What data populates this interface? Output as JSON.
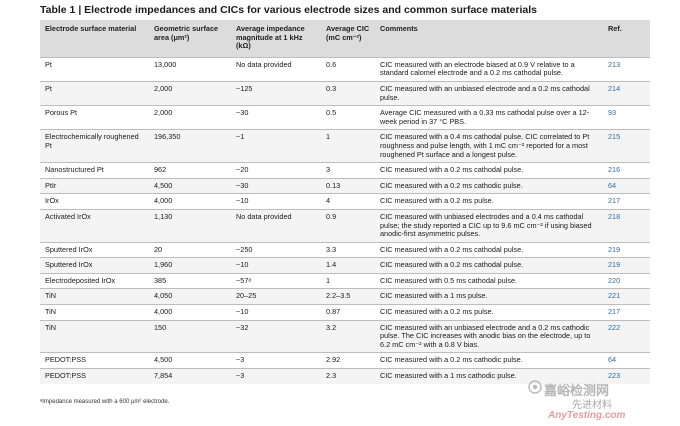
{
  "title": "Table 1 | Electrode impedances and CICs for various electrode sizes and common surface materials",
  "headers": {
    "material": "Electrode surface material",
    "area": "Geometric surface area (μm²)",
    "impedance": "Average impedance magnitude at 1 kHz (kΩ)",
    "cic": "Average CIC (mC cm⁻²)",
    "comments": "Comments",
    "ref": "Ref."
  },
  "rows": [
    {
      "material": "Pt",
      "area": "13,000",
      "impedance": "No data provided",
      "cic": "0.6",
      "comments": "CIC measured with an electrode biased at 0.9 V relative to a standard calomel electrode and a 0.2 ms cathodal pulse.",
      "ref": "213"
    },
    {
      "material": "Pt",
      "area": "2,000",
      "impedance": "~125",
      "cic": "0.3",
      "comments": "CIC measured with an unbiased electrode and a 0.2 ms cathodal pulse.",
      "ref": "214"
    },
    {
      "material": "Porous Pt",
      "area": "2,000",
      "impedance": "~30",
      "cic": "0.5",
      "comments": "Average CIC measured with a 0.33 ms cathodal pulse over a 12-week period in 37 °C PBS.",
      "ref": "93"
    },
    {
      "material": "Electrochemically roughened Pt",
      "area": "196,350",
      "impedance": "~1",
      "cic": "1",
      "comments": "CIC measured with a 0.4 ms cathodal pulse. CIC correlated to Pt roughness and pulse length, with 1 mC cm⁻² reported for a most roughened Pt surface and a longest pulse.",
      "ref": "215"
    },
    {
      "material": "Nanostructured Pt",
      "area": "962",
      "impedance": "~20",
      "cic": "3",
      "comments": "CIC measured with a 0.2 ms cathodal pulse.",
      "ref": "216"
    },
    {
      "material": "PtIr",
      "area": "4,500",
      "impedance": "~30",
      "cic": "0.13",
      "comments": "CIC measured with a 0.2 ms cathodic pulse.",
      "ref": "64"
    },
    {
      "material": "IrOx",
      "area": "4,000",
      "impedance": "~10",
      "cic": "4",
      "comments": "CIC measured with a 0.2 ms pulse.",
      "ref": "217"
    },
    {
      "material": "Activated IrOx",
      "area": "1,130",
      "impedance": "No data provided",
      "cic": "0.9",
      "comments": "CIC measured with unbiased electrodes and a 0.4 ms cathodal pulse; the study reported a CIC up to 9.6 mC cm⁻² if using biased anodic-first asymmetric pulses.",
      "ref": "218"
    },
    {
      "material": "Sputtered IrOx",
      "area": "20",
      "impedance": "~250",
      "cic": "3.3",
      "comments": "CIC measured with a 0.2 ms cathodal pulse.",
      "ref": "219"
    },
    {
      "material": "Sputtered IrOx",
      "area": "1,960",
      "impedance": "~10",
      "cic": "1.4",
      "comments": "CIC measured with a 0.2 ms cathodal pulse.",
      "ref": "219"
    },
    {
      "material": "Electrodeposited IrOx",
      "area": "385",
      "impedance": "~57ᵃ",
      "cic": "1",
      "comments": "CIC measured with 0.5 ms cathodal pulse.",
      "ref": "220"
    },
    {
      "material": "TiN",
      "area": "4,050",
      "impedance": "20–25",
      "cic": "2.2–3.5",
      "comments": "CIC measured with a 1 ms pulse.",
      "ref": "221"
    },
    {
      "material": "TiN",
      "area": "4,000",
      "impedance": "~10",
      "cic": "0.87",
      "comments": "CIC measured with a 0.2 ms pulse.",
      "ref": "217"
    },
    {
      "material": "TiN",
      "area": "150",
      "impedance": "~32",
      "cic": "3.2",
      "comments": "CIC measured with an unbiased electrode and a 0.2 ms cathodic pulse. The CIC increases with anodic bias on the electrode, up to 6.2 mC cm⁻² with a 0.8 V bias.",
      "ref": "222"
    },
    {
      "material": "PEDOT:PSS",
      "area": "4,500",
      "impedance": "~3",
      "cic": "2.92",
      "comments": "CIC measured with a 0.2 ms cathodic pulse.",
      "ref": "64"
    },
    {
      "material": "PEDOT:PSS",
      "area": "7,854",
      "impedance": "~3",
      "cic": "2.3",
      "comments": "CIC measured with a 1 ms cathodic pulse.",
      "ref": "223"
    }
  ],
  "footnote": "ᵃImpedance measured with a 600 μm² electrode.",
  "watermark": {
    "cn": "嘉峪检测网",
    "cn2": "先进材料",
    "en": "AnyTesting.com"
  }
}
